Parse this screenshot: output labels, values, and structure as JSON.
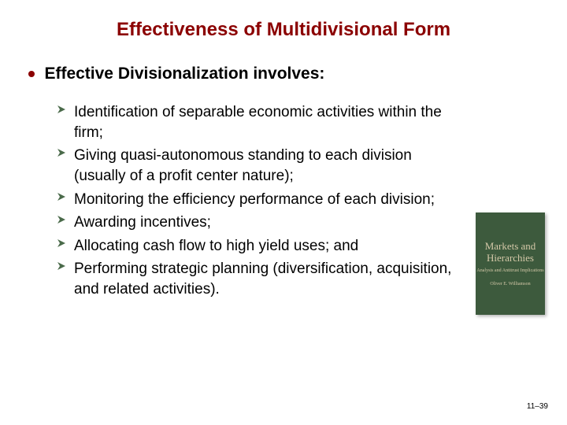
{
  "title": {
    "text": "Effectiveness of Multidivisional Form",
    "color": "#8b0000",
    "fontsize": 24
  },
  "heading": {
    "text": "Effective Divisionalization involves:",
    "color": "#000000",
    "fontsize": 21,
    "bullet_color": "#8b0000",
    "bullet_size": 8
  },
  "items": [
    "Identification of separable economic activities within the firm;",
    "Giving quasi-autonomous standing to each division (usually of a profit center nature);",
    "Monitoring the efficiency performance of each division;",
    "Awarding incentives;",
    "Allocating cash flow to high yield uses; and",
    "Performing strategic planning (diversification, acquisition, and related activities)."
  ],
  "item_style": {
    "color": "#000000",
    "fontsize": 19,
    "arrow_color": "#4a6a4a",
    "arrow_size": 12
  },
  "book": {
    "bg_color": "#3d5a3d",
    "accent_color": "#d4c8a8",
    "title": "Markets and Hierarchies",
    "title_fontsize": 13,
    "subtitle": "Analysis and Antitrust Implications",
    "subtitle_fontsize": 6,
    "author": "Oliver E. Williamson",
    "author_fontsize": 6
  },
  "page_number": {
    "text": "11–39",
    "fontsize": 10,
    "color": "#000000"
  }
}
